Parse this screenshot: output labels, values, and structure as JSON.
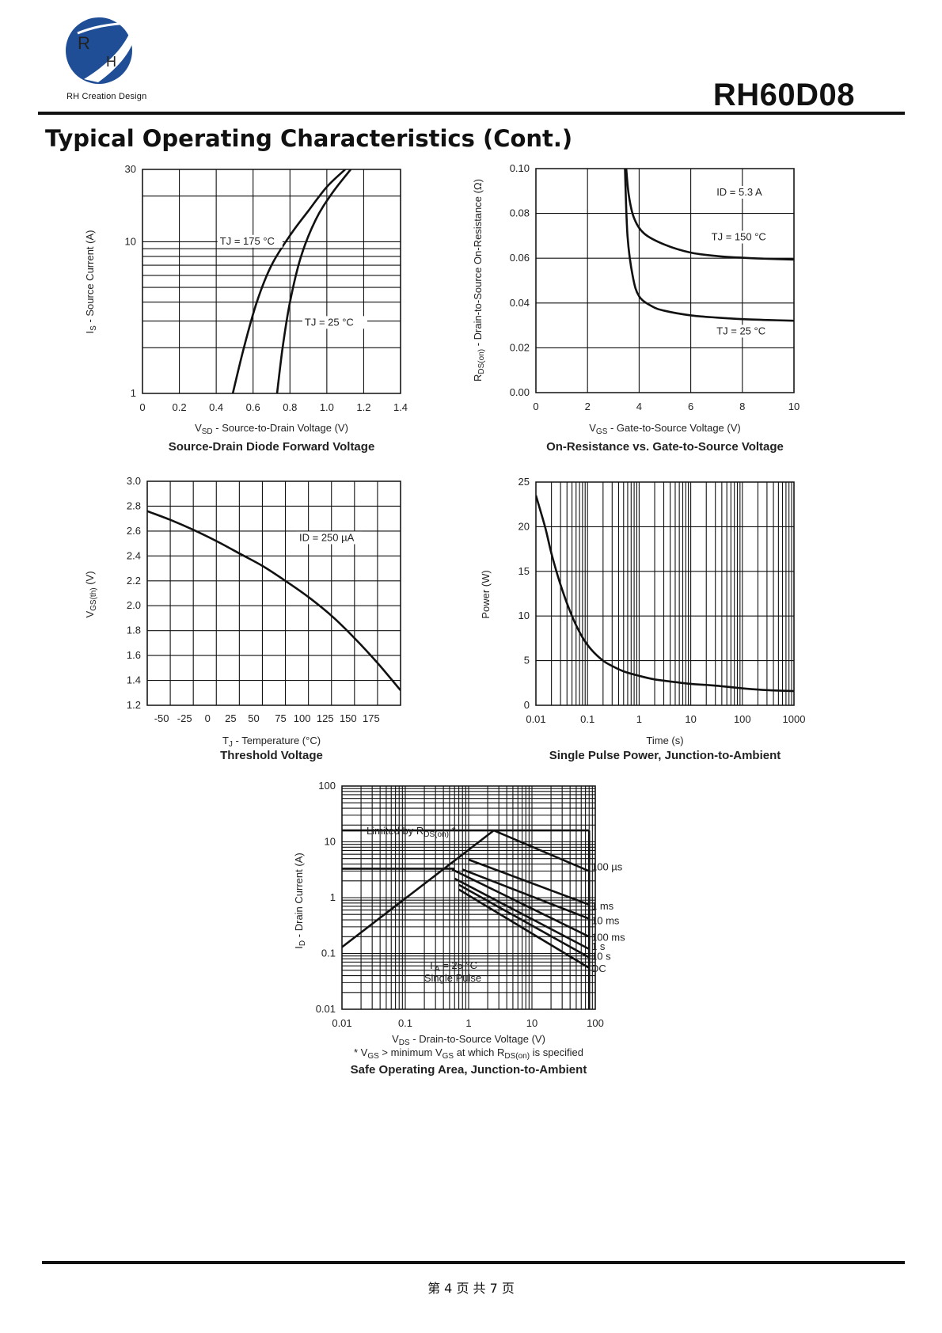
{
  "header": {
    "logo_text": "RH Creation Design",
    "part_number": "RH60D08",
    "section_title": "Typical Operating Characteristics (Cont.)"
  },
  "footer": {
    "page_text": "第 4 页 共 7 页"
  },
  "chart_data": [
    {
      "id": "forward",
      "type": "line",
      "title": "Source-Drain Diode Forward Voltage",
      "xlabel": "V_SD - Source-to-Drain Voltage (V)",
      "ylabel": "I_S - Source Current (A)",
      "xlim": [
        0,
        1.4
      ],
      "ylim": [
        1,
        30
      ],
      "yscale": "log",
      "xticks": [
        "0",
        "0.2",
        "0.4",
        "0.6",
        "0.8",
        "1.0",
        "1.2",
        "1.4"
      ],
      "yticks": [
        "1",
        "10",
        "30"
      ],
      "grid": true,
      "series": [
        {
          "name": "TJ = 175 °C",
          "x": [
            0.49,
            0.55,
            0.62,
            0.7,
            0.8,
            0.9,
            1.0,
            1.1
          ],
          "y": [
            1,
            2,
            4,
            7,
            11,
            16,
            23,
            30
          ]
        },
        {
          "name": "TJ = 25 °C",
          "x": [
            0.73,
            0.76,
            0.8,
            0.86,
            0.94,
            1.03,
            1.13
          ],
          "y": [
            1,
            2,
            4,
            8,
            14,
            21,
            30
          ]
        }
      ],
      "labels": [
        {
          "label": "TJ = 175 °C",
          "x": 0.42,
          "y": 9.6
        },
        {
          "label": "TJ = 25 °C",
          "x": 0.88,
          "y": 2.8
        }
      ]
    },
    {
      "id": "onres",
      "type": "line",
      "title": "On-Resistance vs. Gate-to-Source Voltage",
      "xlabel": "V_GS - Gate-to-Source Voltage (V)",
      "ylabel": "R_DS(on) - Drain-to-Source On-Resistance (Ω)",
      "xlim": [
        0,
        10
      ],
      "ylim": [
        0,
        0.1
      ],
      "xticks": [
        "0",
        "2",
        "4",
        "6",
        "8",
        "10"
      ],
      "yticks": [
        "0.00",
        "0.02",
        "0.04",
        "0.06",
        "0.08",
        "0.10"
      ],
      "grid": true,
      "series": [
        {
          "name": "TJ = 150 °C",
          "x": [
            3.5,
            3.6,
            3.8,
            4.2,
            5.0,
            6.0,
            7.0,
            8.0,
            9.0,
            10.0
          ],
          "y": [
            0.1,
            0.088,
            0.078,
            0.071,
            0.066,
            0.0625,
            0.061,
            0.0602,
            0.0597,
            0.0594
          ]
        },
        {
          "name": "TJ = 25 °C",
          "x": [
            3.45,
            3.55,
            3.75,
            4.0,
            4.5,
            5.0,
            6.0,
            7.0,
            8.0,
            9.0,
            10.0
          ],
          "y": [
            0.1,
            0.07,
            0.052,
            0.043,
            0.0385,
            0.0365,
            0.0345,
            0.0335,
            0.0328,
            0.0324,
            0.0321
          ]
        }
      ],
      "labels": [
        {
          "label": "ID = 5.3 A",
          "x": 7.0,
          "y": 0.088
        },
        {
          "label": "TJ = 150 °C",
          "x": 6.8,
          "y": 0.068
        },
        {
          "label": "TJ = 25 °C",
          "x": 7.0,
          "y": 0.026
        }
      ]
    },
    {
      "id": "threshold",
      "type": "line",
      "title": "Threshold Voltage",
      "xlabel": "TJ - Temperature (°C)",
      "ylabel": "V_GS(th) (V)",
      "xlim": [
        -75,
        200
      ],
      "ylim": [
        1.2,
        3.0
      ],
      "xticks": [
        "-50",
        "-25",
        "0",
        "25",
        "50",
        "75",
        "100",
        "125",
        "150",
        "175"
      ],
      "yticks": [
        "1.2",
        "1.4",
        "1.6",
        "1.8",
        "2.0",
        "2.2",
        "2.4",
        "2.6",
        "2.8",
        "3.0"
      ],
      "grid": true,
      "series": [
        {
          "name": "ID = 250 µA",
          "x": [
            -75,
            -50,
            -25,
            0,
            25,
            50,
            75,
            100,
            125,
            150,
            175,
            200
          ],
          "y": [
            2.76,
            2.69,
            2.61,
            2.52,
            2.42,
            2.32,
            2.2,
            2.07,
            1.92,
            1.74,
            1.54,
            1.32
          ]
        }
      ],
      "labels": [
        {
          "label": "ID = 250 µA",
          "x": 90,
          "y": 2.52
        }
      ]
    },
    {
      "id": "pulse",
      "type": "line",
      "title": "Single Pulse Power, Junction-to-Ambient",
      "xlabel": "Time (s)",
      "ylabel": "Power (W)",
      "xscale": "log",
      "xlim": [
        0.01,
        1000
      ],
      "ylim": [
        0,
        25
      ],
      "xticks": [
        "0.01",
        "0.1",
        "1",
        "10",
        "100",
        "1000"
      ],
      "yticks": [
        "0",
        "5",
        "10",
        "15",
        "20",
        "25"
      ],
      "grid": true,
      "series": [
        {
          "name": "Power",
          "x": [
            0.01,
            0.015,
            0.02,
            0.03,
            0.05,
            0.08,
            0.12,
            0.2,
            0.3,
            0.5,
            1,
            2,
            5,
            10,
            30,
            100,
            300,
            1000
          ],
          "y": [
            23.5,
            20,
            17,
            13.5,
            10,
            7.6,
            6.2,
            5.0,
            4.4,
            3.8,
            3.3,
            2.9,
            2.6,
            2.4,
            2.2,
            1.9,
            1.7,
            1.6
          ]
        }
      ]
    },
    {
      "id": "soa",
      "type": "line",
      "title": "Safe Operating Area, Junction-to-Ambient",
      "xlabel": "V_DS - Drain-to-Source Voltage (V)",
      "ylabel": "ID - Drain Current (A)",
      "note": "* V_GS > minimum V_GS at which R_DS(on) is specified",
      "xscale": "log",
      "yscale": "log",
      "xlim": [
        0.01,
        100
      ],
      "ylim": [
        0.01,
        100
      ],
      "xticks": [
        "0.01",
        "0.1",
        "1",
        "10",
        "100"
      ],
      "yticks": [
        "0.01",
        "0.1",
        "1",
        "10",
        "100"
      ],
      "grid": true,
      "limit_label": "Limited by R_DS(on) *",
      "conditions": [
        "TA = 25 °C",
        "Single Pulse"
      ],
      "series": [
        {
          "name": "R_DS(on) limit",
          "x": [
            0.01,
            2.5
          ],
          "y": [
            0.13,
            16
          ]
        },
        {
          "name": "100 µs",
          "x": [
            2.5,
            80
          ],
          "y": [
            16,
            3.0
          ]
        },
        {
          "name": "1 ms",
          "x": [
            1.0,
            80
          ],
          "y": [
            4.8,
            0.75
          ]
        },
        {
          "name": "10 ms",
          "x": [
            0.8,
            80
          ],
          "y": [
            3.2,
            0.42
          ]
        },
        {
          "name": "100 ms",
          "x": [
            0.55,
            80
          ],
          "y": [
            3.2,
            0.2
          ]
        },
        {
          "name": "1 s",
          "x": [
            0.6,
            80
          ],
          "y": [
            2.2,
            0.12
          ]
        },
        {
          "name": "10 s",
          "x": [
            0.7,
            80
          ],
          "y": [
            1.7,
            0.085
          ]
        },
        {
          "name": "DC",
          "x": [
            0.7,
            80
          ],
          "y": [
            1.4,
            0.055
          ]
        }
      ],
      "current_limits": [
        {
          "x": [
            0.01,
            80
          ],
          "y": [
            16,
            16
          ]
        },
        {
          "x": [
            0.01,
            0.6
          ],
          "y": [
            3.3,
            3.3
          ]
        }
      ]
    }
  ]
}
